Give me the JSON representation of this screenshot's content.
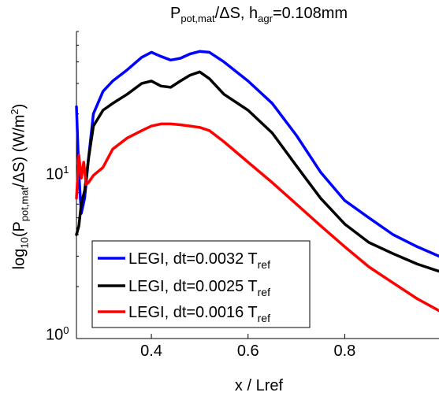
{
  "title": {
    "main": "P",
    "sub": "pot,mat",
    "mid": "/ΔS, h",
    "sub2": "agr",
    "tail": "=0.108mm"
  },
  "ylabel": {
    "pre": "log",
    "sub1": "10",
    "p": "(P",
    "sub2": "pot,mat",
    "mid": "/ΔS) (W/m",
    "sup": "2",
    "end": ")"
  },
  "xlabel": "x / Lref",
  "y_ticks": [
    {
      "base": "10",
      "exp": "0"
    },
    {
      "base": "10",
      "exp": "1"
    }
  ],
  "chart_data": {
    "type": "line",
    "xlim": [
      0.245,
      0.995
    ],
    "ylim": [
      1,
      60
    ],
    "y_scale": "log",
    "grid": false,
    "legend_position": "bottom-left",
    "x_ticks": [
      0.4,
      0.6,
      0.8
    ],
    "series": [
      {
        "name": "LEGI, dt=0.0032 T_ref",
        "label_main": "LEGI, dt=0.0032 T",
        "label_sub": "ref",
        "color": "#0000ff",
        "x": [
          0.245,
          0.25,
          0.255,
          0.262,
          0.27,
          0.28,
          0.3,
          0.32,
          0.35,
          0.38,
          0.4,
          0.42,
          0.44,
          0.46,
          0.48,
          0.5,
          0.52,
          0.55,
          0.6,
          0.65,
          0.7,
          0.75,
          0.8,
          0.85,
          0.9,
          0.95,
          0.995
        ],
        "y": [
          22,
          9,
          5.3,
          6.5,
          11,
          20,
          27,
          31,
          36,
          42.5,
          45.5,
          43,
          41,
          42,
          44.5,
          46,
          45.5,
          40,
          31,
          23,
          15,
          9.2,
          6.3,
          5,
          4,
          3.4,
          3.0
        ]
      },
      {
        "name": "LEGI, dt=0.0025 T_ref",
        "label_main": "LEGI, dt=0.0025 T",
        "label_sub": "ref",
        "color": "#000000",
        "x": [
          0.245,
          0.25,
          0.255,
          0.262,
          0.27,
          0.28,
          0.3,
          0.32,
          0.35,
          0.38,
          0.4,
          0.42,
          0.44,
          0.46,
          0.48,
          0.5,
          0.52,
          0.55,
          0.6,
          0.65,
          0.7,
          0.75,
          0.8,
          0.85,
          0.9,
          0.95,
          0.995
        ],
        "y": [
          4.0,
          4.5,
          6.0,
          7.2,
          11,
          17,
          21,
          23,
          26,
          30,
          31,
          29,
          28.5,
          31,
          33.5,
          35,
          32,
          26,
          21,
          15.5,
          10,
          6.5,
          4.6,
          3.6,
          3.1,
          2.7,
          2.45
        ]
      },
      {
        "name": "LEGI, dt=0.0016 T_ref",
        "label_main": "LEGI, dt=0.0016 T",
        "label_sub": "ref",
        "color": "#ff0000",
        "x": [
          0.245,
          0.25,
          0.255,
          0.26,
          0.265,
          0.27,
          0.28,
          0.3,
          0.32,
          0.35,
          0.38,
          0.4,
          0.42,
          0.44,
          0.46,
          0.48,
          0.5,
          0.52,
          0.55,
          0.6,
          0.65,
          0.7,
          0.75,
          0.8,
          0.85,
          0.9,
          0.95,
          0.995
        ],
        "y": [
          6.5,
          11.5,
          8.5,
          10.5,
          7.8,
          8.0,
          8.8,
          9.8,
          12.5,
          14.5,
          16,
          17,
          17.5,
          17.5,
          17.3,
          17,
          16.7,
          16,
          13.8,
          10.5,
          8.0,
          6.0,
          4.5,
          3.4,
          2.6,
          2.1,
          1.7,
          1.45
        ]
      }
    ]
  }
}
